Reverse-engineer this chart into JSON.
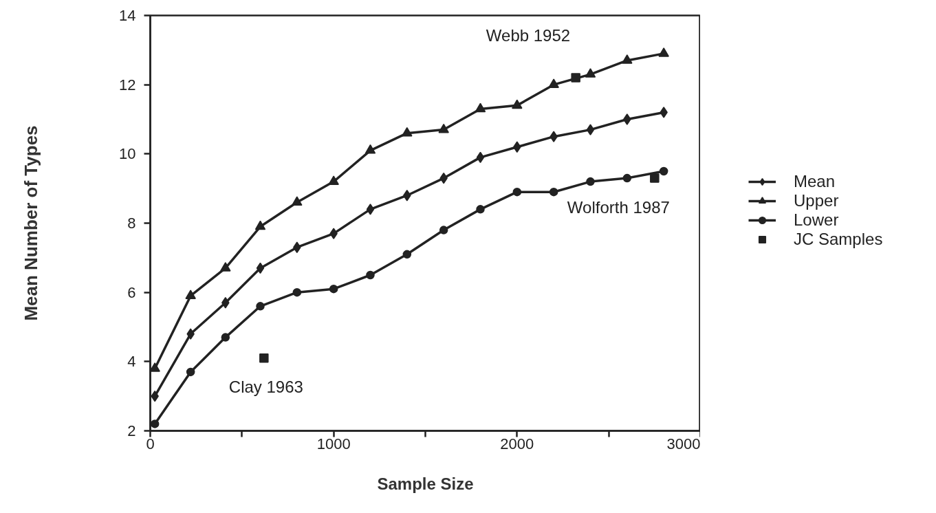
{
  "chart_data": {
    "type": "line",
    "xlabel": "Sample Size",
    "ylabel": "Mean Number of Types",
    "x": [
      25,
      220,
      410,
      600,
      800,
      1000,
      1200,
      1400,
      1600,
      1800,
      2000,
      2200,
      2400,
      2600,
      2800
    ],
    "series": [
      {
        "name": "Mean",
        "color": "#222222",
        "marker": "diamond",
        "values": [
          3.0,
          4.8,
          5.7,
          6.7,
          7.3,
          7.7,
          8.4,
          8.8,
          9.3,
          9.9,
          10.2,
          10.5,
          10.7,
          11.0,
          11.2
        ]
      },
      {
        "name": "Upper",
        "color": "#222222",
        "marker": "triangle",
        "values": [
          3.8,
          5.9,
          6.7,
          7.9,
          8.6,
          9.2,
          10.1,
          10.6,
          10.7,
          11.3,
          11.4,
          12.0,
          12.3,
          12.7,
          12.9
        ]
      },
      {
        "name": "Lower",
        "color": "#222222",
        "marker": "circle",
        "values": [
          2.2,
          3.7,
          4.7,
          5.6,
          6.0,
          6.1,
          6.5,
          7.1,
          7.8,
          8.4,
          8.9,
          8.9,
          9.2,
          9.3,
          9.5
        ]
      },
      {
        "name": "JC Samples",
        "type": "scatter",
        "color": "#222222",
        "marker": "square",
        "x": [
          620,
          2320,
          2750
        ],
        "values": [
          4.1,
          12.2,
          9.3
        ]
      }
    ],
    "annotations": [
      {
        "text": "Webb 1952",
        "x": 2320,
        "y": 12.2
      },
      {
        "text": "Clay 1963",
        "x": 620,
        "y": 4.1
      },
      {
        "text": "Wolforth 1987",
        "x": 2750,
        "y": 9.3
      }
    ],
    "xlim": [
      0,
      3000
    ],
    "ylim": [
      2,
      14
    ],
    "xticks": [
      0,
      {
        "value": 500,
        "label": null
      },
      1000,
      {
        "value": 1500,
        "label": null
      },
      2000,
      {
        "value": 2500,
        "label": null
      },
      3000
    ],
    "yticks": [
      2,
      4,
      6,
      8,
      10,
      12,
      14
    ],
    "legend": "right",
    "line_style": "solid"
  }
}
